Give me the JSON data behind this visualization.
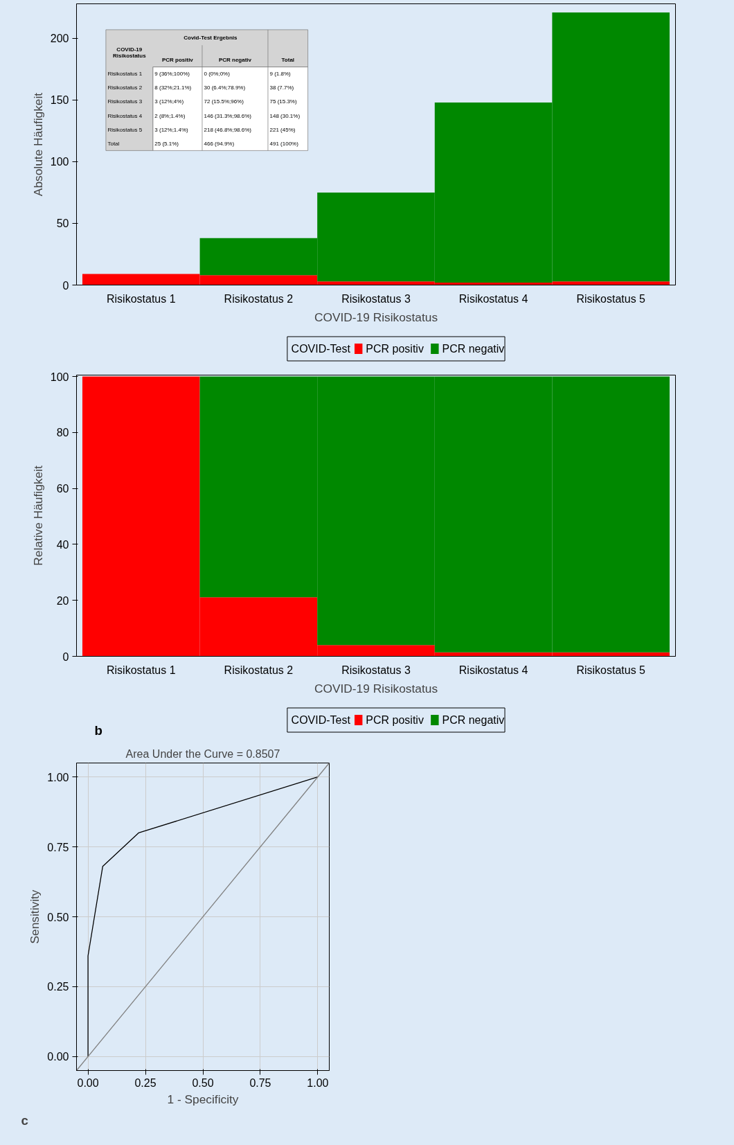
{
  "chart_data": [
    {
      "type": "bar",
      "stacked": true,
      "xlabel": "COVID-19 Risikostatus",
      "ylabel": "Absolute Häufigkeit",
      "legend_title": "COVID-Test",
      "legend": "bottom",
      "grid": false,
      "categories": [
        "Risikostatus 1",
        "Risikostatus 2",
        "Risikostatus 3",
        "Risikostatus 4",
        "Risikostatus 5"
      ],
      "series": [
        {
          "name": "PCR positiv",
          "color": "#ff0000",
          "values": [
            9,
            8,
            3,
            2,
            3
          ]
        },
        {
          "name": "PCR negativ",
          "color": "#008800",
          "values": [
            0,
            30,
            72,
            146,
            218
          ]
        }
      ],
      "ylim": [
        0,
        228
      ],
      "yticks": [
        0,
        50,
        100,
        150,
        200
      ],
      "annotations": [
        "Covid-Test Ergebnis",
        "COVID-19\nRisikostatus",
        "PCR positiv",
        "PCR negativ",
        "Total",
        "Risikostatus 1",
        "9 (36%;100%)",
        "0 (0%;0%)",
        "9 (1.8%)",
        "Risikostatus 2",
        "8 (32%;21.1%)",
        "30 (6.4%;78.9%)",
        "38 (7.7%)",
        "Risikostatus 3",
        "3 (12%;4%)",
        "72 (15.5%;96%)",
        "75 (15.3%)",
        "Risikostatus 4",
        "2 (8%;1.4%)",
        "146 (31.3%;98.6%)",
        "148 (30.1%)",
        "Risikostatus 5",
        "3 (12%;1.4%)",
        "218 (46.8%;98.6%)",
        "221 (45%)",
        "Total",
        "25 (5.1%)",
        "466 (94.9%)",
        "491 (100%)"
      ]
    },
    {
      "type": "bar",
      "stacked": true,
      "xlabel": "COVID-19 Risikostatus",
      "ylabel": "Relative Häufigkeit",
      "legend_title": "COVID-Test",
      "legend": "bottom",
      "grid": false,
      "categories": [
        "Risikostatus 1",
        "Risikostatus 2",
        "Risikostatus 3",
        "Risikostatus 4",
        "Risikostatus 5"
      ],
      "series": [
        {
          "name": "PCR positiv",
          "color": "#ff0000",
          "values": [
            100,
            21.1,
            4,
            1.4,
            1.4
          ]
        },
        {
          "name": "PCR negativ",
          "color": "#008800",
          "values": [
            0,
            78.9,
            96,
            98.6,
            98.6
          ]
        }
      ],
      "ylim": [
        0,
        100.5
      ],
      "yticks": [
        0,
        20,
        40,
        60,
        80,
        100
      ],
      "annotations": [
        "b"
      ]
    },
    {
      "type": "line",
      "title": "Area Under the Curve = 0.8507",
      "xlabel": "1 - Specificity",
      "ylabel": "Sensitivity",
      "grid": true,
      "xlim": [
        -0.05,
        1.05
      ],
      "ylim": [
        -0.05,
        1.05
      ],
      "xticks": [
        {
          "value": 0,
          "label": "0.00"
        },
        {
          "value": 0.25,
          "label": "0.25"
        },
        {
          "value": 0.5,
          "label": "0.50"
        },
        {
          "value": 0.75,
          "label": "0.75"
        },
        {
          "value": 1,
          "label": "1.00"
        }
      ],
      "yticks": [
        {
          "value": 0,
          "label": "0.00"
        },
        {
          "value": 0.25,
          "label": "0.25"
        },
        {
          "value": 0.5,
          "label": "0.50"
        },
        {
          "value": 0.75,
          "label": "0.75"
        },
        {
          "value": 1,
          "label": "1.00"
        }
      ],
      "series": [
        {
          "color": "#000000",
          "x": [
            0,
            0,
            0.064,
            0.22,
            1
          ],
          "values": [
            0,
            0.36,
            0.68,
            0.8,
            1
          ]
        },
        {
          "color": "#808080",
          "x": [
            -0.05,
            1.05
          ],
          "values": [
            -0.05,
            1.05
          ]
        }
      ],
      "annotations": [
        "c"
      ]
    }
  ]
}
